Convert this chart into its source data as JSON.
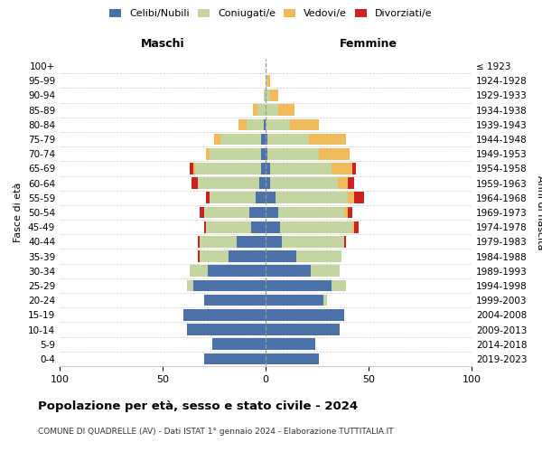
{
  "age_groups": [
    "0-4",
    "5-9",
    "10-14",
    "15-19",
    "20-24",
    "25-29",
    "30-34",
    "35-39",
    "40-44",
    "45-49",
    "50-54",
    "55-59",
    "60-64",
    "65-69",
    "70-74",
    "75-79",
    "80-84",
    "85-89",
    "90-94",
    "95-99",
    "100+"
  ],
  "birth_years": [
    "2019-2023",
    "2014-2018",
    "2009-2013",
    "2004-2008",
    "1999-2003",
    "1994-1998",
    "1989-1993",
    "1984-1988",
    "1979-1983",
    "1974-1978",
    "1969-1973",
    "1964-1968",
    "1959-1963",
    "1954-1958",
    "1949-1953",
    "1944-1948",
    "1939-1943",
    "1934-1938",
    "1929-1933",
    "1924-1928",
    "≤ 1923"
  ],
  "colors": {
    "celibi": "#4a72a8",
    "coniugati": "#c5d5a0",
    "vedovi": "#f0b95a",
    "divorziati": "#cc2222"
  },
  "male": {
    "celibi": [
      30,
      26,
      38,
      40,
      30,
      35,
      28,
      18,
      14,
      7,
      8,
      5,
      3,
      2,
      2,
      2,
      1,
      0,
      0,
      0,
      0
    ],
    "coniugati": [
      0,
      0,
      0,
      0,
      0,
      3,
      9,
      14,
      18,
      22,
      22,
      22,
      30,
      32,
      25,
      20,
      8,
      4,
      1,
      0,
      0
    ],
    "vedovi": [
      0,
      0,
      0,
      0,
      0,
      0,
      0,
      0,
      0,
      0,
      0,
      0,
      0,
      1,
      2,
      3,
      4,
      2,
      0,
      0,
      0
    ],
    "divorziati": [
      0,
      0,
      0,
      0,
      0,
      0,
      0,
      1,
      1,
      1,
      2,
      2,
      3,
      2,
      0,
      0,
      0,
      0,
      0,
      0,
      0
    ]
  },
  "female": {
    "celibi": [
      26,
      24,
      36,
      38,
      28,
      32,
      22,
      15,
      8,
      7,
      6,
      5,
      2,
      2,
      1,
      1,
      0,
      0,
      0,
      0,
      0
    ],
    "coniugati": [
      0,
      0,
      0,
      0,
      2,
      7,
      14,
      22,
      30,
      35,
      32,
      35,
      33,
      30,
      25,
      20,
      12,
      6,
      2,
      1,
      0
    ],
    "vedovi": [
      0,
      0,
      0,
      0,
      0,
      0,
      0,
      0,
      0,
      1,
      2,
      3,
      5,
      10,
      15,
      18,
      14,
      8,
      4,
      1,
      0
    ],
    "divorziati": [
      0,
      0,
      0,
      0,
      0,
      0,
      0,
      0,
      1,
      2,
      2,
      5,
      3,
      2,
      0,
      0,
      0,
      0,
      0,
      0,
      0
    ]
  },
  "xlim": 100,
  "title": "Popolazione per età, sesso e stato civile - 2024",
  "subtitle": "COMUNE DI QUADRELLE (AV) - Dati ISTAT 1° gennaio 2024 - Elaborazione TUTTITALIA.IT",
  "header_left": "Maschi",
  "header_right": "Femmine",
  "ylabel_left": "Fasce di età",
  "ylabel_right": "Anni di nascita",
  "legend_labels": [
    "Celibi/Nubili",
    "Coniugati/e",
    "Vedovi/e",
    "Divorziati/e"
  ]
}
